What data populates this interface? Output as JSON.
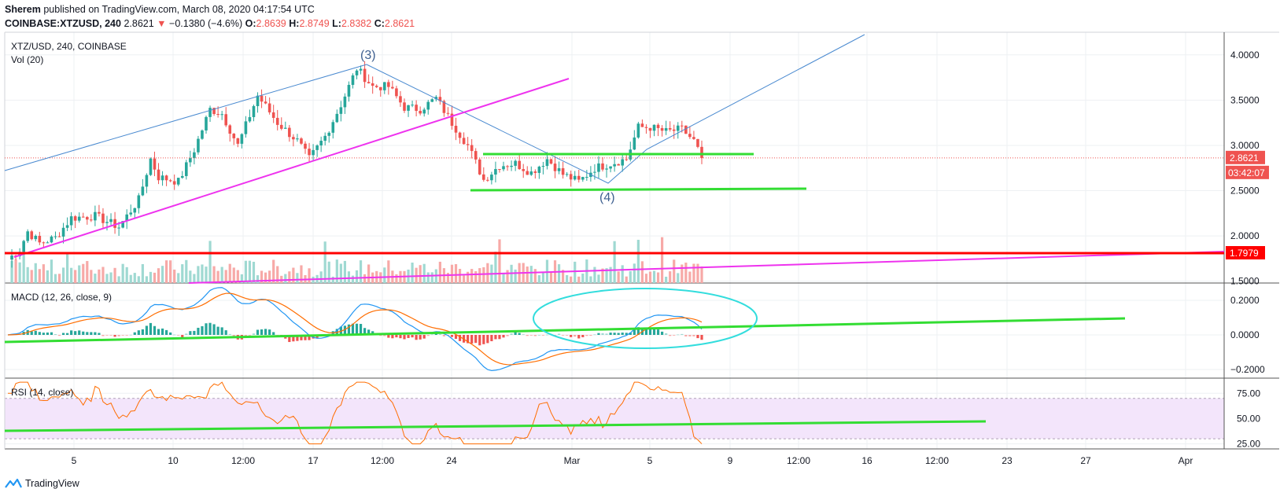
{
  "header": {
    "author": "Sherem",
    "published": "published on TradingView.com, March 08, 2020 04:17:54 UTC",
    "symbol": "COINBASE:XTZUSD, 240",
    "last": "2.8621",
    "change_arrow": "▼",
    "change": "−0.1380 (−4.6%)",
    "o_label": "O:",
    "o": "2.8639",
    "h_label": "H:",
    "h": "2.8749",
    "l_label": "L:",
    "l": "2.8382",
    "c_label": "C:",
    "c": "2.8621"
  },
  "footer": {
    "brand": "TradingView",
    "logo_icon": "tradingview-logo-icon"
  },
  "colors": {
    "up": "#26a69a",
    "down": "#ef5350",
    "vol_up": "#9fd9d2",
    "vol_down": "#f7a9a7",
    "grid": "#eef0f3",
    "macd": "#2196f3",
    "signal": "#ff6d00",
    "rsi": "#ff6d00",
    "rsi_band": "#f3e5fb",
    "green_line": "#33dd33",
    "magenta_line": "#ee33ee",
    "red_line": "#ff0000",
    "blue_line": "#4a8ad0",
    "cyan_ellipse": "#33dddd"
  },
  "chart_data": {
    "type": "candlestick",
    "price_pane": {
      "title": "XTZ/USD, 240, COINBASE",
      "volume_label": "Vol (20)",
      "y_ticks": [
        "4.0000",
        "3.5000",
        "3.0000",
        "2.5000",
        "2.0000",
        "1.5000"
      ],
      "ylim": [
        1.48,
        4.25
      ],
      "last_price_label": "2.8621",
      "countdown_label": "03:42:07",
      "red_level_label": "1.7979",
      "wave_labels": [
        "(3)",
        "(4)"
      ],
      "ohlc_keypoints": [
        {
          "t": 0,
          "close": 1.74
        },
        {
          "t": 3,
          "close": 1.85
        },
        {
          "t": 5,
          "close": 2.05
        },
        {
          "t": 8,
          "close": 1.92
        },
        {
          "t": 12,
          "close": 1.98
        },
        {
          "t": 16,
          "close": 2.2
        },
        {
          "t": 22,
          "close": 2.22
        },
        {
          "t": 28,
          "close": 2.1
        },
        {
          "t": 33,
          "close": 2.4
        },
        {
          "t": 36,
          "close": 2.85
        },
        {
          "t": 38,
          "close": 2.65
        },
        {
          "t": 43,
          "close": 2.6
        },
        {
          "t": 47,
          "close": 2.95
        },
        {
          "t": 51,
          "close": 3.4
        },
        {
          "t": 54,
          "close": 3.35
        },
        {
          "t": 58,
          "close": 3.0
        },
        {
          "t": 63,
          "close": 3.55
        },
        {
          "t": 68,
          "close": 3.25
        },
        {
          "t": 73,
          "close": 3.05
        },
        {
          "t": 76,
          "close": 2.85
        },
        {
          "t": 80,
          "close": 3.1
        },
        {
          "t": 84,
          "close": 3.45
        },
        {
          "t": 88,
          "close": 3.85
        },
        {
          "t": 92,
          "close": 3.65
        },
        {
          "t": 96,
          "close": 3.65
        },
        {
          "t": 100,
          "close": 3.42
        },
        {
          "t": 104,
          "close": 3.4
        },
        {
          "t": 108,
          "close": 3.52
        },
        {
          "t": 112,
          "close": 3.25
        },
        {
          "t": 116,
          "close": 3.0
        },
        {
          "t": 120,
          "close": 2.62
        },
        {
          "t": 124,
          "close": 2.78
        },
        {
          "t": 128,
          "close": 2.8
        },
        {
          "t": 132,
          "close": 2.7
        },
        {
          "t": 136,
          "close": 2.85
        },
        {
          "t": 140,
          "close": 2.68
        },
        {
          "t": 144,
          "close": 2.6
        },
        {
          "t": 148,
          "close": 2.75
        },
        {
          "t": 152,
          "close": 2.8
        },
        {
          "t": 156,
          "close": 2.85
        },
        {
          "t": 159,
          "close": 3.2
        },
        {
          "t": 162,
          "close": 3.2
        },
        {
          "t": 166,
          "close": 3.15
        },
        {
          "t": 170,
          "close": 3.18
        },
        {
          "t": 173,
          "close": 3.05
        },
        {
          "t": 175,
          "close": 2.86
        }
      ]
    },
    "macd_pane": {
      "title": "MACD (12, 26, close, 9)",
      "y_ticks": [
        "0.2000",
        "0.0000",
        "−0.2000"
      ],
      "ylim": [
        -0.25,
        0.3
      ]
    },
    "rsi_pane": {
      "title": "RSI (14, close)",
      "y_ticks": [
        "75.00",
        "50.00",
        "25.00"
      ],
      "ylim": [
        20,
        90
      ],
      "band": [
        30,
        70
      ]
    },
    "x_ticks": [
      "5",
      "10",
      "12:00",
      "17",
      "12:00",
      "24",
      "Mar",
      "5",
      "9",
      "12:00",
      "16",
      "12:00",
      "23",
      "27",
      "Apr"
    ]
  }
}
